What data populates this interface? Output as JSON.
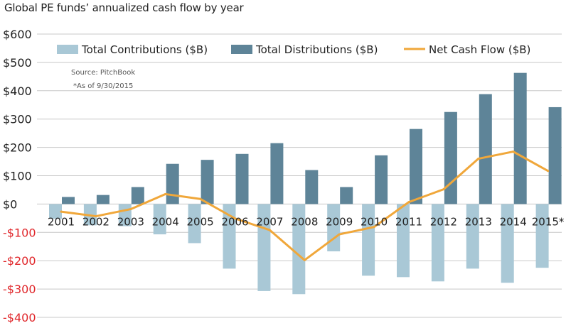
{
  "title": "Global PE funds’ annualized cash flow by year",
  "source_note": "Source: PitchBook",
  "asof_note": "*As of 9/30/2015",
  "colors": {
    "contributions": "#a9c8d6",
    "distributions": "#5e8498",
    "net": "#f0a73a",
    "gridline": "#c8c8c8",
    "negative_tick": "#e0262a",
    "positive_tick": "#222222"
  },
  "chart_data": {
    "type": "bar",
    "title": "Global PE funds’ annualized cash flow by year",
    "xlabel": "",
    "ylabel": "",
    "ylim": [
      -400,
      600
    ],
    "yticks": [
      {
        "value": 600,
        "label": "$600"
      },
      {
        "value": 500,
        "label": "$500"
      },
      {
        "value": 400,
        "label": "$400"
      },
      {
        "value": 300,
        "label": "$300"
      },
      {
        "value": 200,
        "label": "$200"
      },
      {
        "value": 100,
        "label": "$100"
      },
      {
        "value": 0,
        "label": "$0"
      },
      {
        "value": -100,
        "label": "-$100"
      },
      {
        "value": -200,
        "label": "-$200"
      },
      {
        "value": -300,
        "label": "-$300"
      },
      {
        "value": -400,
        "label": "-$400"
      }
    ],
    "grid": true,
    "legend_position": "top",
    "categories": [
      "2001",
      "2002",
      "2003",
      "2004",
      "2005",
      "2006",
      "2007",
      "2008",
      "2009",
      "2010",
      "2011",
      "2012",
      "2013",
      "2014",
      "2015*"
    ],
    "series": [
      {
        "name": "Total Contributions ($B)",
        "type": "bar",
        "values": [
          -52,
          -75,
          -78,
          -107,
          -138,
          -228,
          -307,
          -318,
          -167,
          -253,
          -258,
          -273,
          -228,
          -278,
          -225
        ]
      },
      {
        "name": "Total Distributions ($B)",
        "type": "bar",
        "values": [
          25,
          32,
          60,
          142,
          156,
          177,
          215,
          120,
          60,
          172,
          265,
          325,
          388,
          463,
          342
        ]
      },
      {
        "name": "Net Cash Flow ($B)",
        "type": "line",
        "values": [
          -27,
          -43,
          -18,
          35,
          18,
          -51,
          -92,
          -198,
          -107,
          -81,
          7,
          52,
          160,
          185,
          117
        ]
      }
    ]
  }
}
